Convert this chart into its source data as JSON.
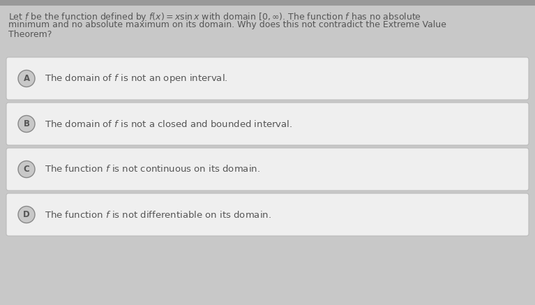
{
  "background_color": "#c8c8c8",
  "top_bar_color": "#999999",
  "question_text_line1": "Let $f$ be the function defined by $f(x) = x\\sin x$ with domain $[0, \\infty)$. The function $f$ has no absolute",
  "question_text_line2": "minimum and no absolute maximum on its domain. Why does this not contradict the Extreme Value",
  "question_text_line3": "Theorem?",
  "options": [
    {
      "label": "A",
      "text": "The domain of $f$ is not an open interval.",
      "circle_bg": "#c8c8c8",
      "circle_border": "#888888",
      "box_bg": "#efefef",
      "box_border": "#bbbbbb"
    },
    {
      "label": "B",
      "text": "The domain of $f$ is not a closed and bounded interval.",
      "circle_bg": "#c8c8c8",
      "circle_border": "#888888",
      "box_bg": "#efefef",
      "box_border": "#bbbbbb"
    },
    {
      "label": "C",
      "text": "The function $f$ is not continuous on its domain.",
      "circle_bg": "#c8c8c8",
      "circle_border": "#888888",
      "box_bg": "#efefef",
      "box_border": "#bbbbbb"
    },
    {
      "label": "D",
      "text": "The function $f$ is not differentiable on its domain.",
      "circle_bg": "#c8c8c8",
      "circle_border": "#888888",
      "box_bg": "#efefef",
      "box_border": "#bbbbbb"
    }
  ],
  "question_fontsize": 9.0,
  "option_fontsize": 9.5,
  "label_fontsize": 8.5,
  "text_color": "#555555",
  "label_color": "#555555",
  "fig_width": 7.67,
  "fig_height": 4.37,
  "dpi": 100
}
